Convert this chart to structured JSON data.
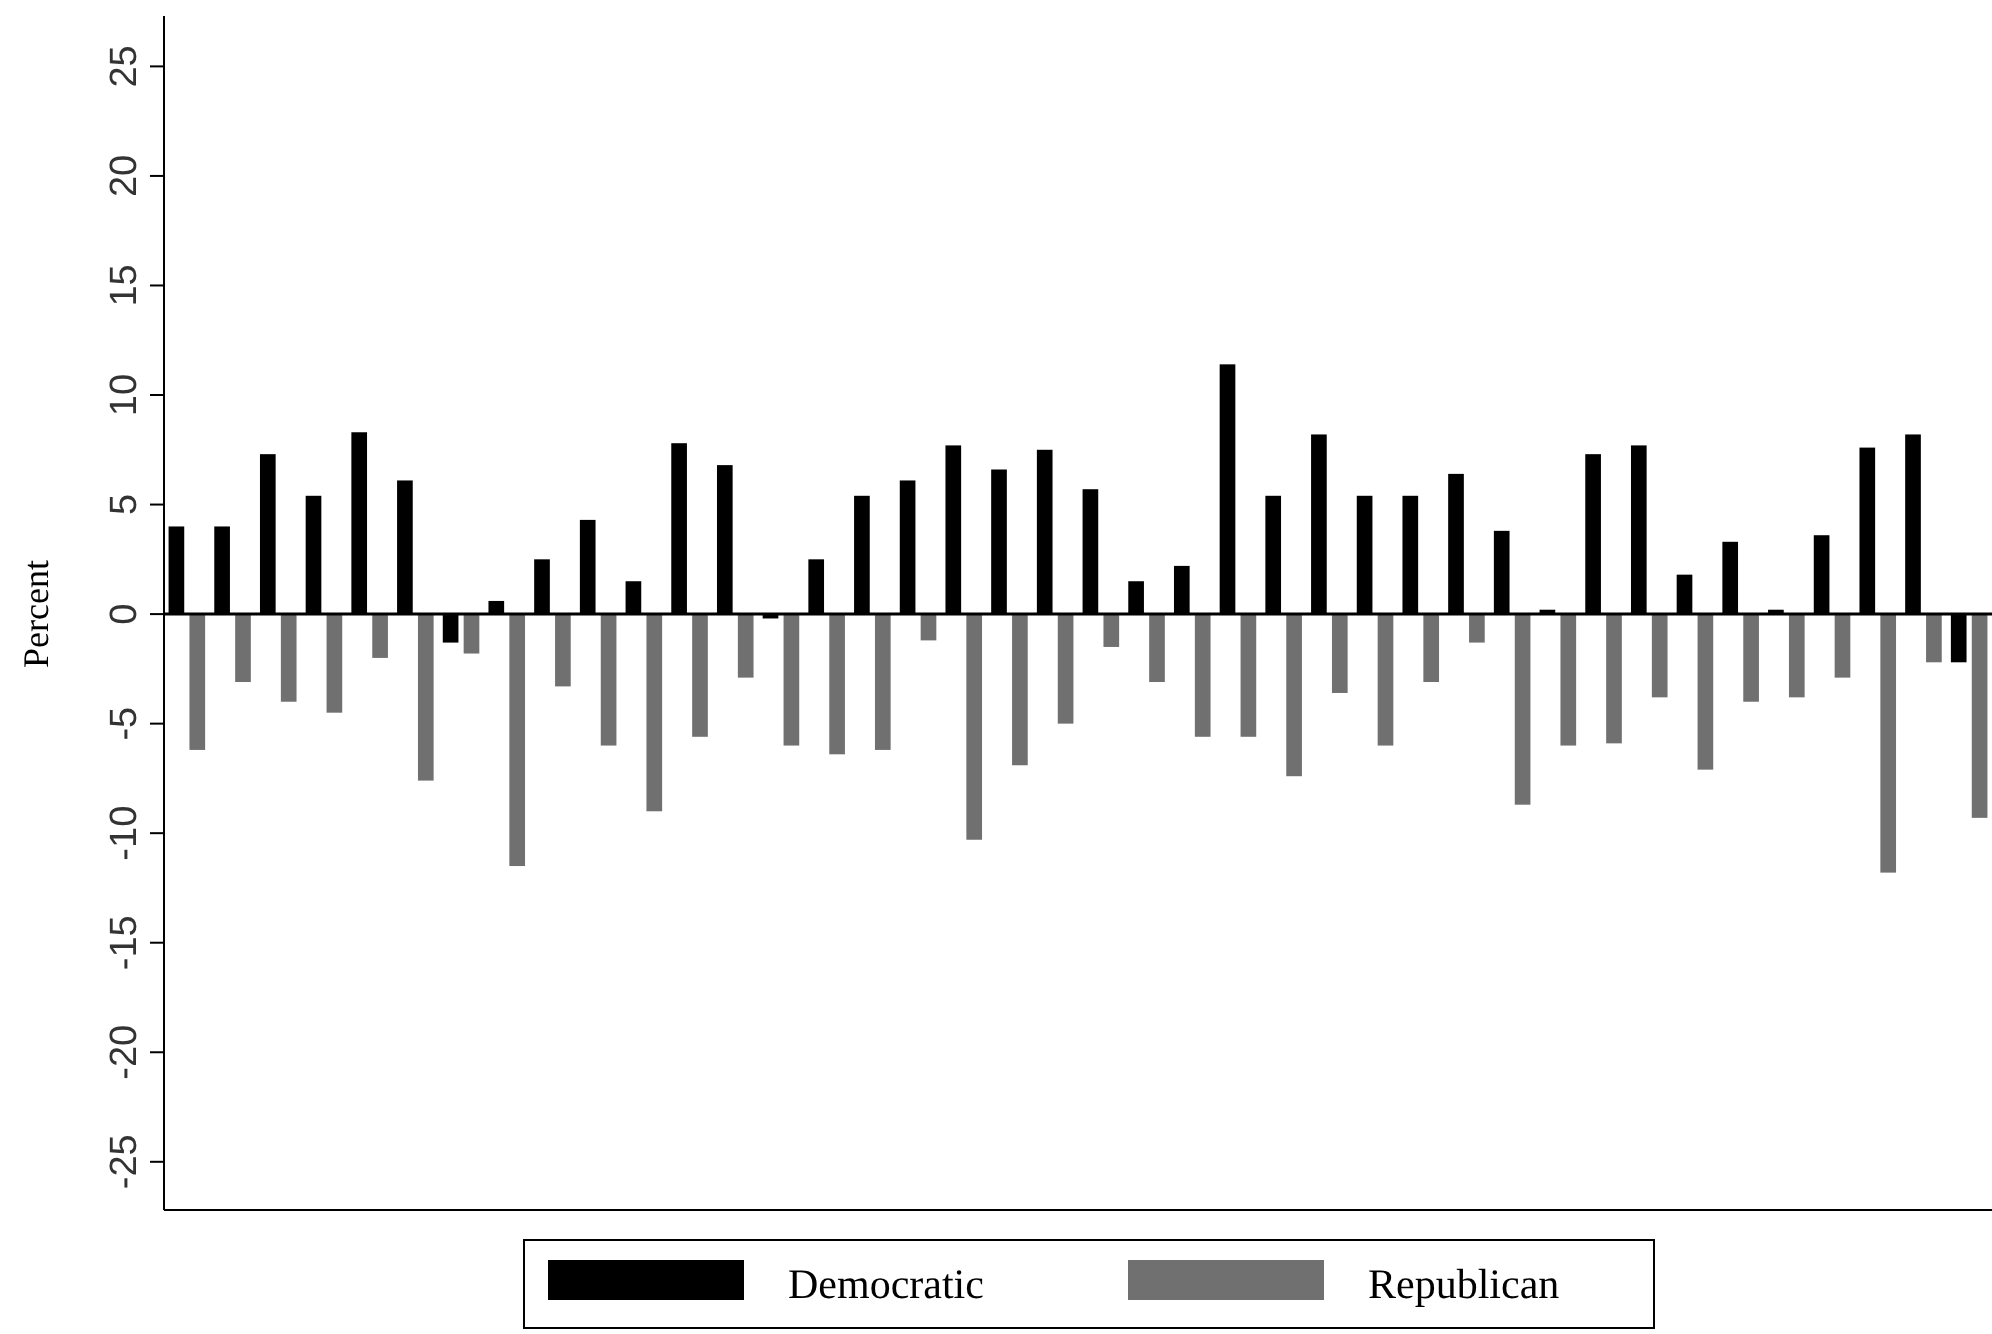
{
  "chart_data": {
    "type": "bar",
    "ylabel": "Percent",
    "categories": [
      null,
      null,
      null,
      null,
      null,
      null,
      null,
      null,
      null,
      null,
      null,
      null,
      null,
      null,
      null,
      null,
      null,
      null,
      null,
      null,
      null,
      null,
      null,
      null,
      null,
      null,
      null,
      null,
      null,
      null,
      null,
      null,
      null,
      null,
      null,
      null,
      null,
      null,
      null,
      null
    ],
    "series": [
      {
        "name": "Democratic",
        "color": "#000000",
        "values": [
          4,
          4,
          7.3,
          5.4,
          8.3,
          6.1,
          -1.3,
          0.6,
          2.5,
          4.3,
          1.5,
          7.8,
          6.8,
          -0.2,
          2.5,
          5.4,
          6.1,
          7.7,
          6.6,
          7.5,
          5.7,
          1.5,
          2.2,
          11.4,
          5.4,
          8.2,
          5.4,
          5.4,
          6.4,
          3.8,
          0.2,
          7.3,
          7.7,
          1.8,
          3.3,
          0.2,
          3.6,
          7.6,
          8.2,
          -2.2
        ]
      },
      {
        "name": "Republican",
        "color": "#707070",
        "values": [
          -6.2,
          -3.1,
          -4,
          -4.5,
          -2,
          -7.6,
          -1.8,
          -11.5,
          -3.3,
          -6,
          -9,
          -5.6,
          -2.9,
          -6,
          -6.4,
          -6.2,
          -1.2,
          -10.3,
          -6.9,
          -5,
          -1.5,
          -3.1,
          -5.6,
          -5.6,
          -7.4,
          -3.6,
          -6,
          -3.1,
          -1.3,
          -8.7,
          -6,
          -5.9,
          -3.8,
          -7.1,
          -4,
          -3.8,
          -2.9,
          -11.8,
          -2.2,
          -9.3
        ]
      }
    ],
    "ylim": [
      -27.2,
      27.3
    ],
    "yticks": [
      -25,
      -20,
      -15,
      -10,
      -5,
      0,
      5,
      10,
      15,
      20,
      25
    ],
    "tick_labels": "y",
    "ref_lines": [
      {
        "axis": "y",
        "value": 0,
        "color": "#000000"
      }
    ],
    "grid": false,
    "legend": "bottom"
  }
}
